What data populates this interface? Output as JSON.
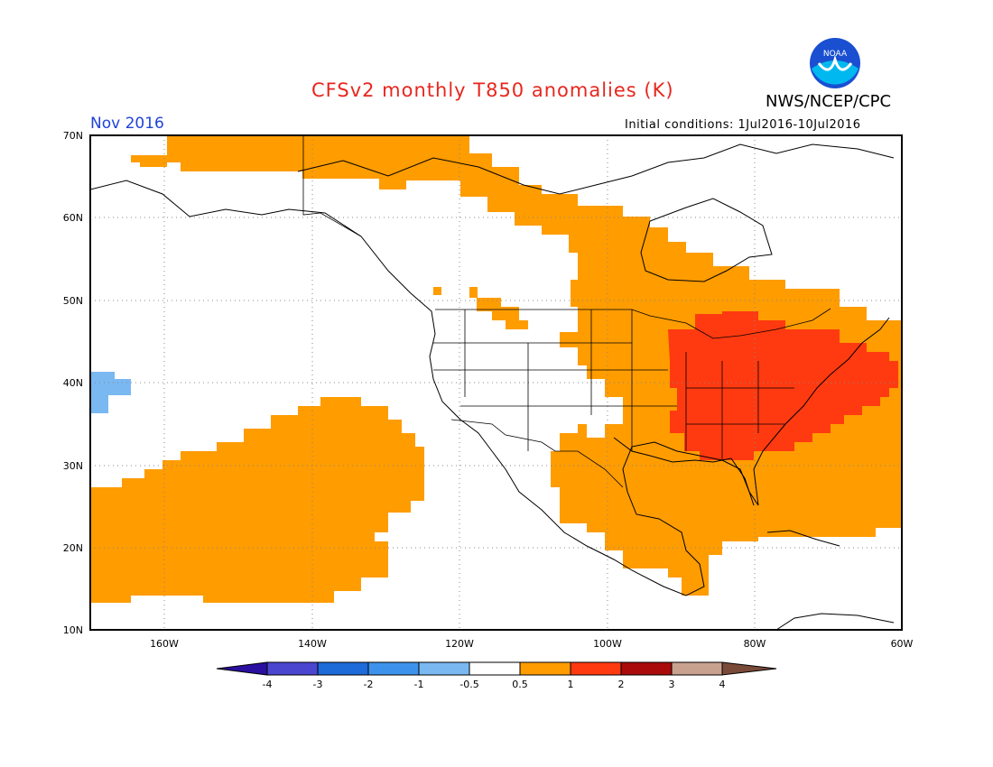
{
  "header": {
    "title": "CFSv2 monthly T850 anomalies (K)",
    "agency": "NWS/NCEP/CPC",
    "month": "Nov 2016",
    "initial_conditions": "Initial conditions: 1Jul2016-10Jul2016",
    "logo_text": "NOAA"
  },
  "map": {
    "lat_labels": [
      "70N",
      "60N",
      "50N",
      "40N",
      "30N",
      "20N",
      "10N"
    ],
    "lon_labels": [
      "160W",
      "140W",
      "120W",
      "100W",
      "80W",
      "60W"
    ]
  },
  "legend": {
    "tick_labels": [
      "-4",
      "-3",
      "-2",
      "-1",
      "-0.5",
      "0.5",
      "1",
      "2",
      "3",
      "4"
    ],
    "colors": [
      "#2a0fa0",
      "#4b46cf",
      "#1d6ad9",
      "#3d93ec",
      "#7ab8f2",
      "#ffffff",
      "#ff9c00",
      "#ff3a10",
      "#a90a0a",
      "#c9a18f",
      "#7a4a38"
    ]
  },
  "colors": {
    "title": "#e8261e",
    "month": "#1f43d8",
    "warm_1": "#ff9c00",
    "warm_2": "#ff3a10",
    "cool_1": "#7ab8f2"
  }
}
